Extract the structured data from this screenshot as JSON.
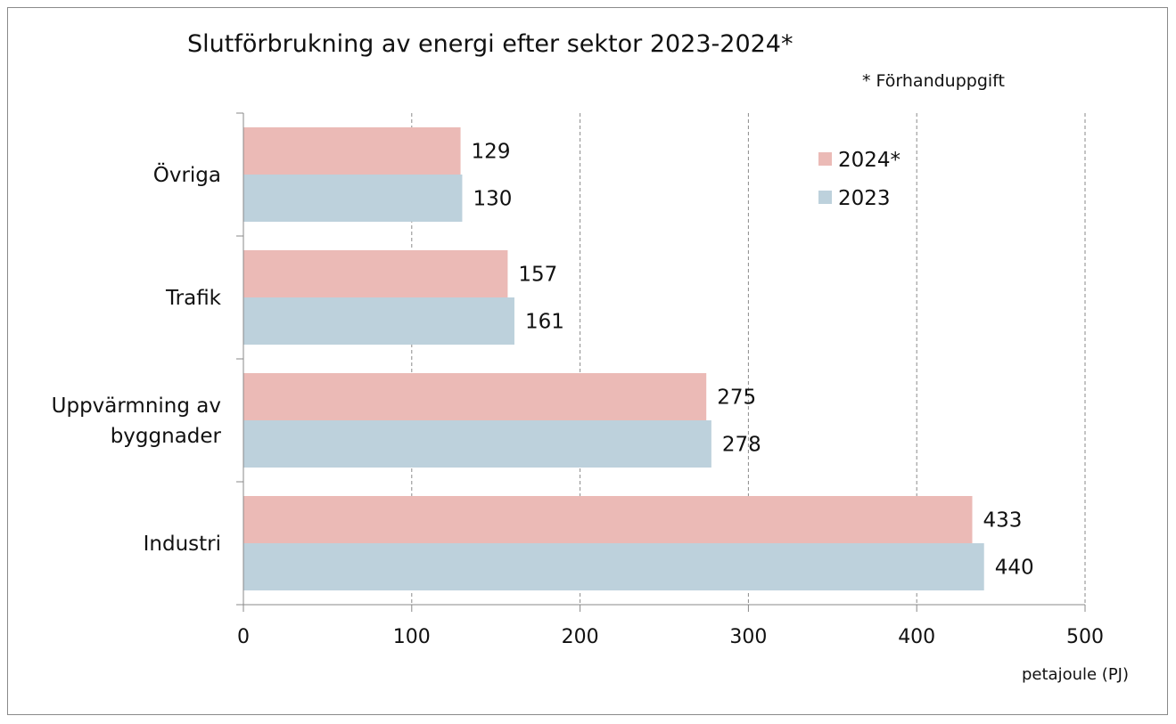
{
  "chart_data": {
    "type": "bar",
    "orientation": "horizontal",
    "title": "Slutförbrukning av energi efter sektor 2023-2024*",
    "note": "* Förhanduppgift",
    "categories": [
      [
        "Övriga"
      ],
      [
        "Trafik"
      ],
      [
        "Uppvärmning av",
        "byggnader"
      ],
      [
        "Industri"
      ]
    ],
    "series": [
      {
        "name": "2024*",
        "color": "#ebbab6",
        "values": [
          129,
          157,
          275,
          433
        ]
      },
      {
        "name": "2023",
        "color": "#bdd1dc",
        "values": [
          130,
          161,
          278,
          440
        ]
      }
    ],
    "xlabel": "petajoule (PJ)",
    "xlim": [
      0,
      500
    ],
    "xticks": [
      0,
      100,
      200,
      300,
      400,
      500
    ],
    "grid": "vertical dashed",
    "legend_position": "top-right"
  }
}
